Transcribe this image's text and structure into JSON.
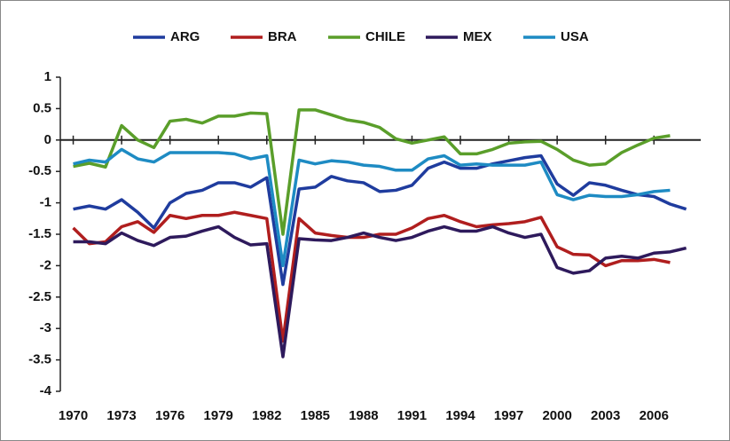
{
  "chart_data": {
    "type": "line",
    "x": [
      1970,
      1971,
      1972,
      1973,
      1974,
      1975,
      1976,
      1977,
      1978,
      1979,
      1980,
      1981,
      1982,
      1983,
      1984,
      1985,
      1986,
      1987,
      1988,
      1989,
      1990,
      1991,
      1992,
      1993,
      1994,
      1995,
      1996,
      1997,
      1998,
      1999,
      2000,
      2001,
      2002,
      2003,
      2004,
      2005,
      2006,
      2007,
      2008
    ],
    "xlim": [
      1969.2,
      2008.9
    ],
    "xticks": [
      1970,
      1973,
      1976,
      1979,
      1982,
      1985,
      1988,
      1991,
      1994,
      1997,
      2000,
      2003,
      2006
    ],
    "ylim": [
      -4,
      1
    ],
    "yticks": [
      1,
      0.5,
      0,
      -0.5,
      -1,
      -1.5,
      -2,
      -2.5,
      -3,
      -3.5,
      -4
    ],
    "legend": "top",
    "series": [
      {
        "name": "ARG",
        "color": "#1f3c9e",
        "values": [
          -1.1,
          -1.05,
          -1.1,
          -0.95,
          -1.15,
          -1.4,
          -1.0,
          -0.85,
          -0.8,
          -0.68,
          -0.68,
          -0.75,
          -0.6,
          -2.3,
          -0.78,
          -0.75,
          -0.58,
          -0.65,
          -0.68,
          -0.82,
          -0.8,
          -0.72,
          -0.45,
          -0.35,
          -0.45,
          -0.45,
          -0.38,
          -0.33,
          -0.28,
          -0.25,
          -0.7,
          -0.88,
          -0.68,
          -0.72,
          -0.8,
          -0.87,
          -0.9,
          -1.02,
          -1.1
        ]
      },
      {
        "name": "BRA",
        "color": "#b01e1e",
        "values": [
          -1.4,
          -1.65,
          -1.62,
          -1.38,
          -1.3,
          -1.47,
          -1.2,
          -1.25,
          -1.2,
          -1.2,
          -1.15,
          -1.2,
          -1.25,
          -3.2,
          -1.25,
          -1.48,
          -1.52,
          -1.55,
          -1.55,
          -1.5,
          -1.5,
          -1.4,
          -1.25,
          -1.2,
          -1.3,
          -1.38,
          -1.35,
          -1.33,
          -1.3,
          -1.23,
          -1.7,
          -1.82,
          -1.83,
          -2.0,
          -1.92,
          -1.92,
          -1.9,
          -1.95,
          null
        ]
      },
      {
        "name": "CHILE",
        "color": "#5a9e2a",
        "values": [
          -0.42,
          -0.37,
          -0.43,
          0.23,
          0.0,
          -0.12,
          0.3,
          0.33,
          0.27,
          0.38,
          0.38,
          0.43,
          0.42,
          -1.5,
          0.48,
          0.48,
          0.4,
          0.32,
          0.28,
          0.2,
          0.02,
          -0.05,
          0.0,
          0.05,
          -0.22,
          -0.22,
          -0.15,
          -0.05,
          -0.03,
          -0.02,
          -0.15,
          -0.32,
          -0.4,
          -0.38,
          -0.2,
          -0.08,
          0.03,
          0.07,
          null
        ]
      },
      {
        "name": "MEX",
        "color": "#2e1a5c",
        "values": [
          -1.62,
          -1.62,
          -1.65,
          -1.48,
          -1.6,
          -1.68,
          -1.55,
          -1.53,
          -1.45,
          -1.38,
          -1.55,
          -1.67,
          -1.65,
          -3.45,
          -1.57,
          -1.59,
          -1.6,
          -1.55,
          -1.48,
          -1.55,
          -1.6,
          -1.55,
          -1.45,
          -1.38,
          -1.45,
          -1.45,
          -1.38,
          -1.48,
          -1.55,
          -1.5,
          -2.03,
          -2.12,
          -2.08,
          -1.88,
          -1.85,
          -1.88,
          -1.8,
          -1.78,
          -1.72
        ]
      },
      {
        "name": "USA",
        "color": "#1e8bc3",
        "values": [
          -0.38,
          -0.32,
          -0.35,
          -0.15,
          -0.3,
          -0.35,
          -0.2,
          -0.2,
          -0.2,
          -0.2,
          -0.22,
          -0.3,
          -0.25,
          -2.0,
          -0.32,
          -0.38,
          -0.33,
          -0.35,
          -0.4,
          -0.42,
          -0.48,
          -0.48,
          -0.3,
          -0.25,
          -0.4,
          -0.38,
          -0.4,
          -0.4,
          -0.4,
          -0.35,
          -0.87,
          -0.95,
          -0.88,
          -0.9,
          -0.9,
          -0.87,
          -0.82,
          -0.8,
          null
        ]
      }
    ]
  }
}
